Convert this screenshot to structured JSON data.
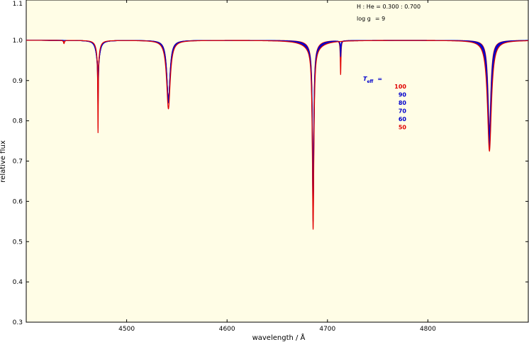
{
  "chart_data": {
    "type": "line",
    "xlabel": "wavelength / Å",
    "ylabel": "relative flux",
    "xlim": [
      4400,
      4900
    ],
    "ylim": [
      0.3,
      1.1
    ],
    "x_ticks": [
      4500,
      4600,
      4700,
      4800
    ],
    "y_ticks": [
      "0.3",
      "0.4",
      "0.5",
      "0.6",
      "0.7",
      "0.8",
      "0.9",
      "1.0",
      "1.1"
    ],
    "annotations": {
      "composition": "H : He = 0.300 : 0.700",
      "logg_label": "log g",
      "logg_eq": "= 9",
      "teff_symbol": "T",
      "teff_sub": "eff",
      "teff_eq": "="
    },
    "background_color": "#fffde6",
    "series": [
      {
        "label": "100",
        "color": "#e00000"
      },
      {
        "label": "90",
        "color": "#0000cc"
      },
      {
        "label": "80",
        "color": "#0000cc"
      },
      {
        "label": "70",
        "color": "#0000cc"
      },
      {
        "label": "60",
        "color": "#0000cc"
      },
      {
        "label": "50",
        "color": "#e00000"
      }
    ],
    "lines": [
      {
        "center": 4437.6,
        "depths": [
          0.008,
          0.0,
          0.0,
          0.0,
          0.0,
          0.005
        ],
        "widths": [
          0.6,
          0.6,
          0.6,
          0.6,
          0.6,
          0.6
        ]
      },
      {
        "center": 4471.5,
        "depths": [
          0.2,
          0.12,
          0.09,
          0.07,
          0.055,
          0.04
        ],
        "widths": [
          0.35,
          0.35,
          0.35,
          0.35,
          0.35,
          0.35
        ]
      },
      {
        "center": 4471.5,
        "depths": [
          0.03,
          0.05,
          0.05,
          0.05,
          0.05,
          0.05
        ],
        "widths": [
          2.2,
          2.2,
          2.2,
          2.2,
          2.2,
          2.2
        ]
      },
      {
        "center": 4541.6,
        "depths": [
          0.17,
          0.155,
          0.15,
          0.15,
          0.15,
          0.15
        ],
        "widths": [
          2.2,
          2.1,
          2.0,
          1.95,
          1.9,
          1.85
        ]
      },
      {
        "center": 4685.7,
        "depths": [
          0.45,
          0.43,
          0.41,
          0.4,
          0.39,
          0.38
        ],
        "widths": [
          0.9,
          0.85,
          0.82,
          0.8,
          0.78,
          0.75
        ]
      },
      {
        "center": 4685.7,
        "depths": [
          0.02,
          0.02,
          0.02,
          0.02,
          0.02,
          0.02
        ],
        "widths": [
          10,
          9,
          8,
          7,
          6,
          5
        ]
      },
      {
        "center": 4713.1,
        "depths": [
          0.0,
          0.02,
          0.03,
          0.03,
          0.04,
          0.085
        ],
        "widths": [
          0.4,
          0.4,
          0.4,
          0.4,
          0.4,
          0.4
        ]
      },
      {
        "center": 4861.3,
        "depths": [
          0.275,
          0.265,
          0.255,
          0.245,
          0.235,
          0.225
        ],
        "widths": [
          2.4,
          2.2,
          2.0,
          1.9,
          1.8,
          1.7
        ]
      }
    ]
  }
}
